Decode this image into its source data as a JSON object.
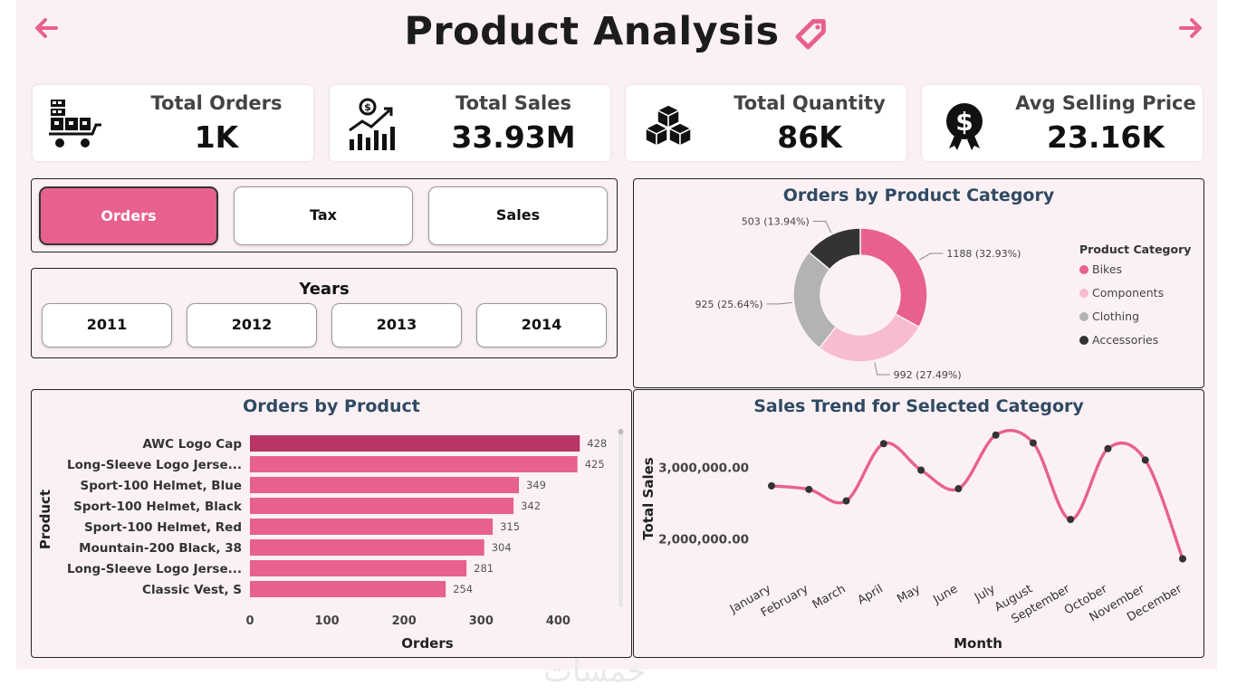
{
  "header": {
    "title": "Product Analysis",
    "back_icon": "arrow-left-icon",
    "forward_icon": "arrow-right-icon",
    "title_icon": "tag-icon",
    "accent": "#e8608f"
  },
  "kpis": [
    {
      "label": "Total Orders",
      "value": "1K",
      "icon": "cart-boxes-icon"
    },
    {
      "label": "Total Sales",
      "value": "33.93M",
      "icon": "sales-growth-icon"
    },
    {
      "label": "Total Quantity",
      "value": "86K",
      "icon": "cubes-icon"
    },
    {
      "label": "Avg Selling Price",
      "value": "23.16K",
      "icon": "dollar-badge-icon"
    }
  ],
  "measure_buttons": [
    {
      "label": "Orders",
      "selected": true
    },
    {
      "label": "Tax",
      "selected": false
    },
    {
      "label": "Sales",
      "selected": false
    }
  ],
  "years": {
    "title": "Years",
    "options": [
      "2011",
      "2012",
      "2013",
      "2014"
    ]
  },
  "chart_data": [
    {
      "type": "pie",
      "subtype": "donut",
      "title": "Orders by Product Category",
      "legend_title": "Product Category",
      "legend_position": "right",
      "categories": [
        "Bikes",
        "Components",
        "Clothing",
        "Accessories"
      ],
      "values": [
        1188,
        992,
        925,
        503
      ],
      "labels": [
        "1188 (32.93%)",
        "992 (27.49%)",
        "925 (25.64%)",
        "503 (13.94%)"
      ],
      "colors": [
        "#e8608f",
        "#f7bcd0",
        "#b3b3b3",
        "#333333"
      ]
    },
    {
      "type": "bar",
      "orientation": "horizontal",
      "title": "Orders by Product",
      "xlabel": "Orders",
      "ylabel": "Product",
      "categories": [
        "AWC Logo Cap",
        "Long-Sleeve Logo Jerse...",
        "Sport-100 Helmet, Blue",
        "Sport-100 Helmet, Black",
        "Sport-100 Helmet, Red",
        "Mountain-200 Black, 38",
        "Long-Sleeve Logo Jerse...",
        "Classic Vest, S"
      ],
      "values": [
        428,
        425,
        349,
        342,
        315,
        304,
        281,
        254
      ],
      "xticks": [
        "0",
        "100",
        "200",
        "300",
        "400"
      ],
      "xlim": [
        0,
        470
      ],
      "colors": {
        "bar": "#e8608f",
        "highlight": "#b83566"
      }
    },
    {
      "type": "line",
      "title": "Sales Trend for Selected Category",
      "xlabel": "Month",
      "ylabel": "Total Sales",
      "categories": [
        "January",
        "February",
        "March",
        "April",
        "May",
        "June",
        "July",
        "August",
        "September",
        "October",
        "November",
        "December"
      ],
      "values": [
        2740000,
        2690000,
        2530000,
        3330000,
        2960000,
        2700000,
        3450000,
        3340000,
        2270000,
        3260000,
        3100000,
        1720000
      ],
      "yticks": [
        "2,000,000.00",
        "3,000,000.00"
      ],
      "ylim": [
        1600000,
        3700000
      ],
      "grid": false,
      "colors": {
        "line": "#e8608f",
        "marker": "#333333"
      }
    }
  ],
  "watermark": "خمسات"
}
